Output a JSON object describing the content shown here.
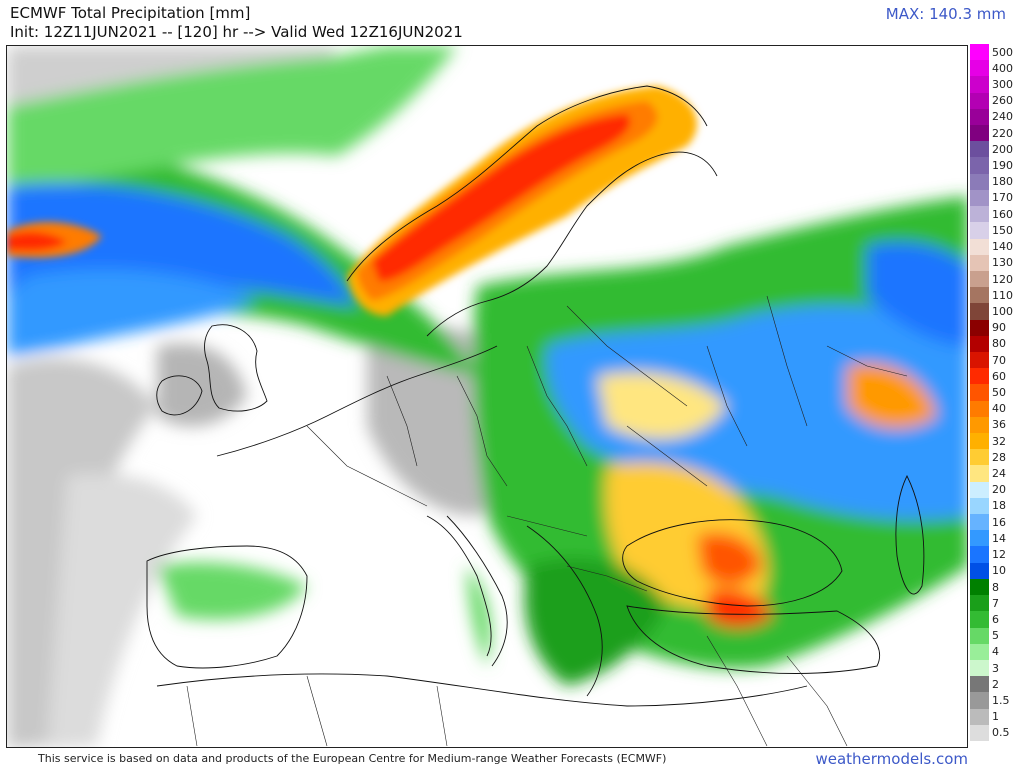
{
  "header": {
    "title": "ECMWF Total Precipitation [mm]",
    "subtitle": "Init: 12Z11JUN2021 -- [120] hr --> Valid Wed 12Z16JUN2021",
    "max_label": "MAX: 140.3 mm"
  },
  "footer": {
    "note": "This service is based on data and products of the European Centre for Medium-range Weather Forecasts (ECMWF)",
    "site": "weathermodels.com"
  },
  "colorbar": [
    {
      "label": "500",
      "color": "#ff00ff"
    },
    {
      "label": "400",
      "color": "#e600e6"
    },
    {
      "label": "300",
      "color": "#cc00cc"
    },
    {
      "label": "260",
      "color": "#b300b3"
    },
    {
      "label": "240",
      "color": "#990099"
    },
    {
      "label": "220",
      "color": "#800080"
    },
    {
      "label": "200",
      "color": "#6c4f9e"
    },
    {
      "label": "190",
      "color": "#7b64ab"
    },
    {
      "label": "180",
      "color": "#8b7bb8"
    },
    {
      "label": "170",
      "color": "#a193c7"
    },
    {
      "label": "160",
      "color": "#bcb2d8"
    },
    {
      "label": "150",
      "color": "#d8d0e8"
    },
    {
      "label": "140",
      "color": "#f2dfd6"
    },
    {
      "label": "130",
      "color": "#e5c4b5"
    },
    {
      "label": "120",
      "color": "#c9a08e"
    },
    {
      "label": "110",
      "color": "#a57561"
    },
    {
      "label": "100",
      "color": "#7f4538"
    },
    {
      "label": "90",
      "color": "#8b0000"
    },
    {
      "label": "80",
      "color": "#b30000"
    },
    {
      "label": "70",
      "color": "#d91400"
    },
    {
      "label": "60",
      "color": "#ff2a00"
    },
    {
      "label": "50",
      "color": "#ff5500"
    },
    {
      "label": "40",
      "color": "#ff7b00"
    },
    {
      "label": "36",
      "color": "#ff9900"
    },
    {
      "label": "32",
      "color": "#ffb000"
    },
    {
      "label": "28",
      "color": "#ffcc33"
    },
    {
      "label": "24",
      "color": "#ffe680"
    },
    {
      "label": "20",
      "color": "#cceeff"
    },
    {
      "label": "18",
      "color": "#99d6ff"
    },
    {
      "label": "16",
      "color": "#66b3ff"
    },
    {
      "label": "14",
      "color": "#3399ff"
    },
    {
      "label": "12",
      "color": "#1a75ff"
    },
    {
      "label": "10",
      "color": "#0050e6"
    },
    {
      "label": "8",
      "color": "#008000"
    },
    {
      "label": "7",
      "color": "#1a9f1a"
    },
    {
      "label": "6",
      "color": "#33bb33"
    },
    {
      "label": "5",
      "color": "#66d966"
    },
    {
      "label": "4",
      "color": "#99ee99"
    },
    {
      "label": "3",
      "color": "#ccf7cc"
    },
    {
      "label": "2",
      "color": "#777777"
    },
    {
      "label": "1.5",
      "color": "#999999"
    },
    {
      "label": "1",
      "color": "#bbbbbb"
    },
    {
      "label": "0.5",
      "color": "#dddddd"
    }
  ]
}
